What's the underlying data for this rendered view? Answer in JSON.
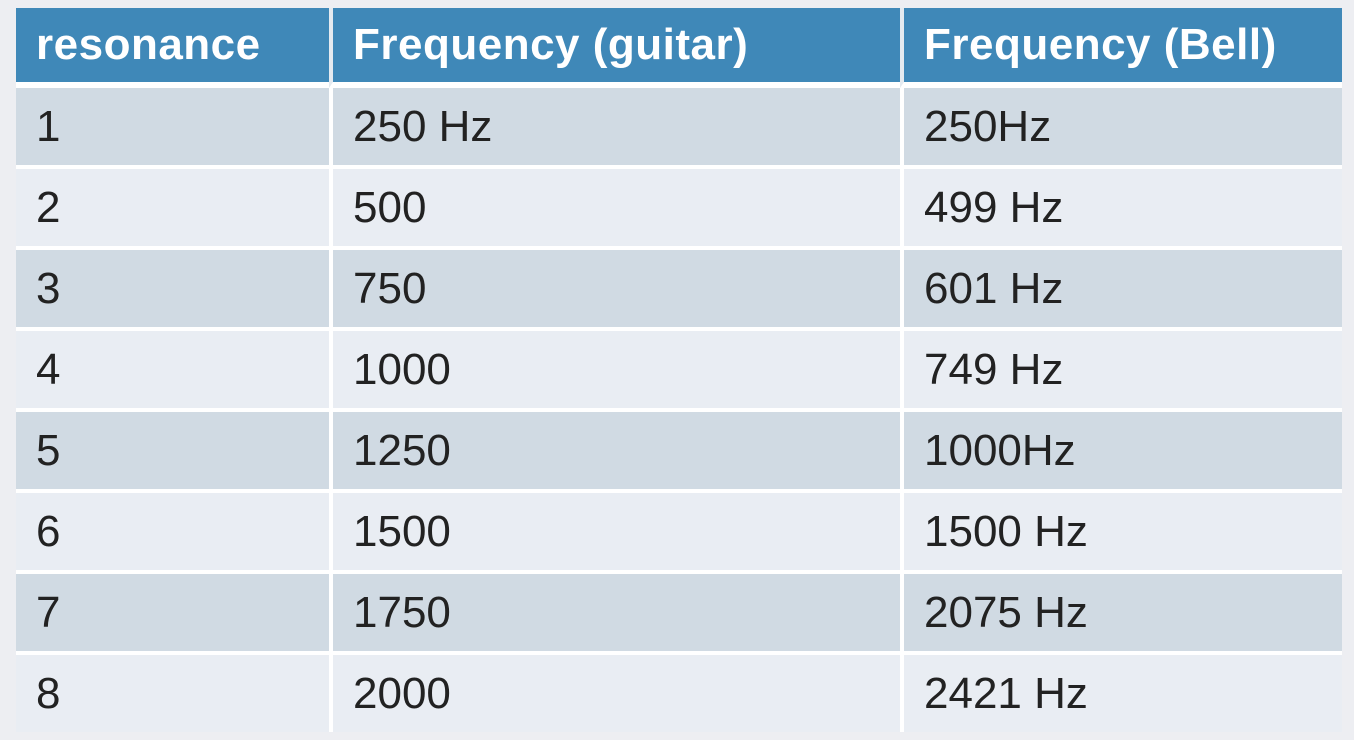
{
  "table": {
    "headers": [
      "resonance",
      "Frequency (guitar)",
      "Frequency (Bell)"
    ],
    "rows": [
      [
        "1",
        "250 Hz",
        "250Hz"
      ],
      [
        "2",
        "500",
        "499 Hz"
      ],
      [
        "3",
        "750",
        "601 Hz"
      ],
      [
        "4",
        "1000",
        "749 Hz"
      ],
      [
        "5",
        "1250",
        "1000Hz"
      ],
      [
        "6",
        "1500",
        "1500 Hz"
      ],
      [
        "7",
        "1750",
        "2075 Hz"
      ],
      [
        "8",
        "2000",
        "2421 Hz"
      ]
    ]
  },
  "colors": {
    "header_bg": "#3f88b8",
    "header_text": "#ffffff",
    "row_odd": "#d0dae3",
    "row_even": "#e9edf3"
  }
}
